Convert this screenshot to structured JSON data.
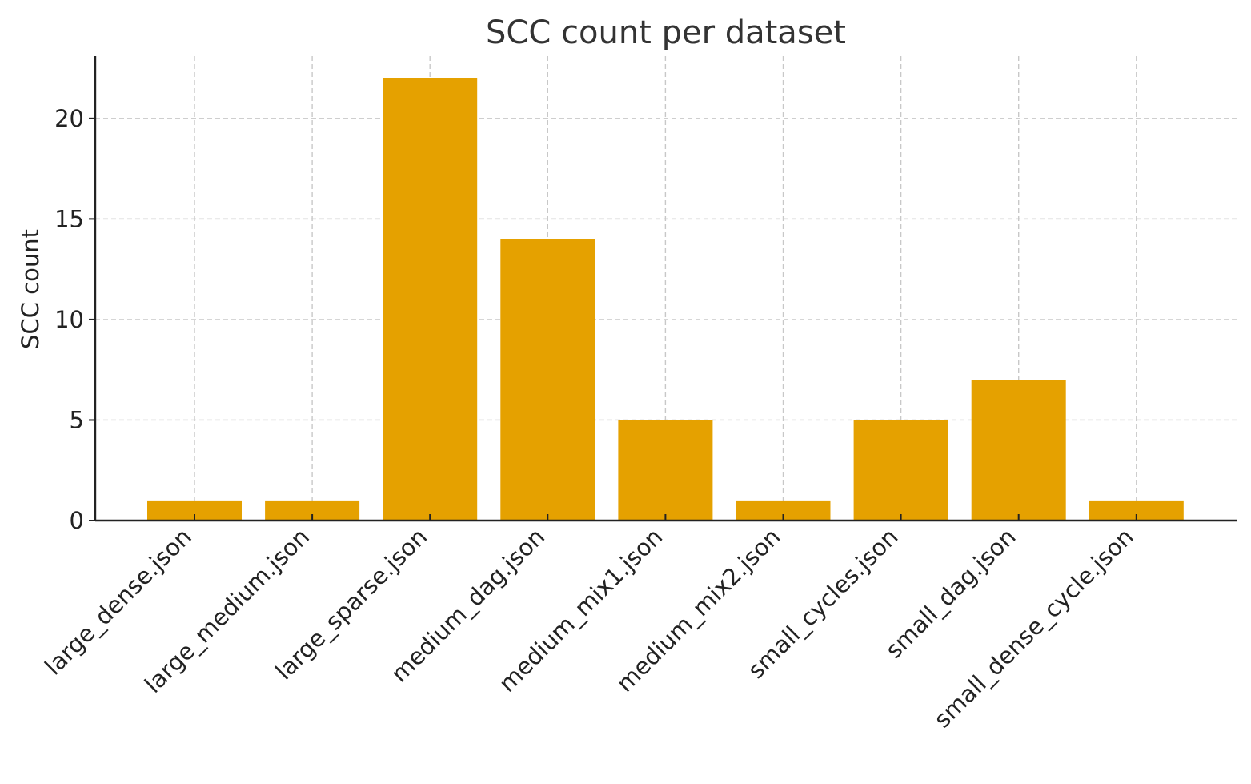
{
  "chart_data": {
    "type": "bar",
    "title": "SCC count per dataset",
    "xlabel": "",
    "ylabel": "SCC count",
    "categories": [
      "large_dense.json",
      "large_medium.json",
      "large_sparse.json",
      "medium_dag.json",
      "medium_mix1.json",
      "medium_mix2.json",
      "small_cycles.json",
      "small_dag.json",
      "small_dense_cycle.json"
    ],
    "values": [
      1,
      1,
      22,
      14,
      5,
      1,
      5,
      7,
      1
    ],
    "ylim": [
      0,
      23.1
    ],
    "yticks": [
      0,
      5,
      10,
      15,
      20
    ],
    "grid": true,
    "bar_color": "#E5A100"
  }
}
